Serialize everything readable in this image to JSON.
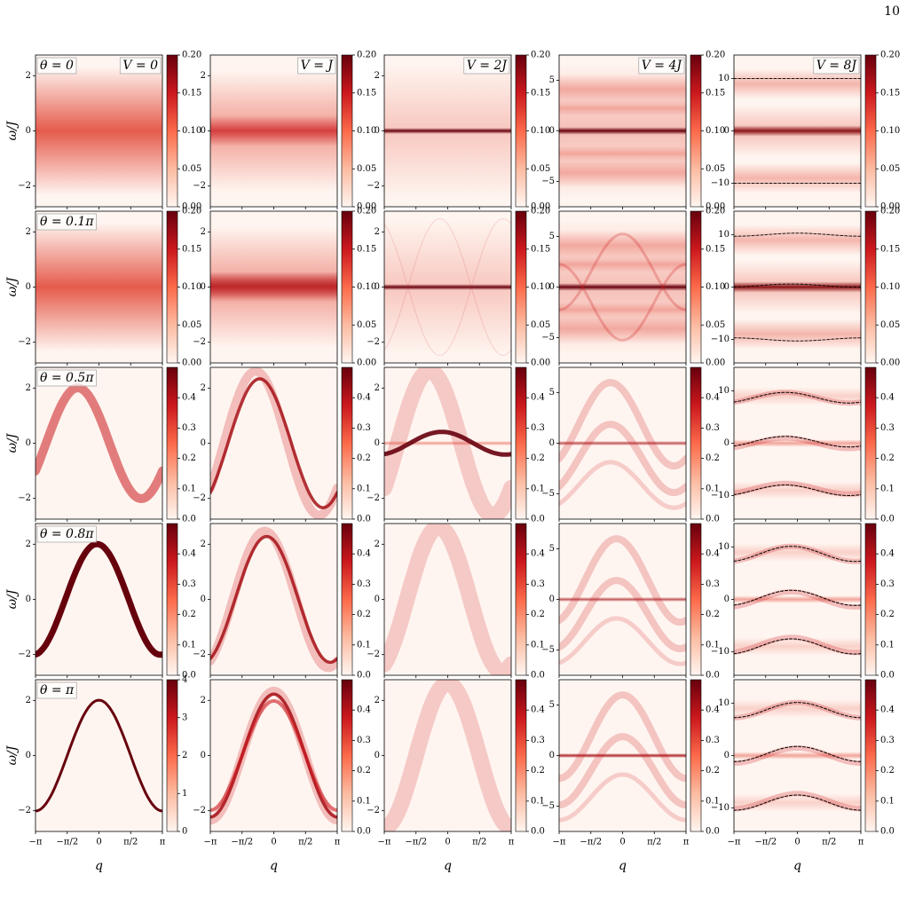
{
  "page_number": "10",
  "y_axis_label": "ω/J",
  "x_axis_label": "q",
  "xlim": [
    -3.1416,
    3.1416
  ],
  "xticks": [
    {
      "value": -3.1416,
      "label": "−π"
    },
    {
      "value": -1.5708,
      "label": "−π/2"
    },
    0,
    {
      "value": 1.5708,
      "label": "π/2"
    },
    {
      "value": 3.1416,
      "label": "π"
    }
  ],
  "columns": [
    {
      "label": "V = 0",
      "ylim": [
        -2.75,
        2.75
      ],
      "yticks": [
        {
          "value": -2,
          "label": "−2"
        },
        0,
        2
      ]
    },
    {
      "label": "V = J",
      "ylim": [
        -2.75,
        2.75
      ],
      "yticks": [
        {
          "value": -2,
          "label": "−2"
        },
        0,
        2
      ]
    },
    {
      "label": "V = 2J",
      "ylim": [
        -2.75,
        2.75
      ],
      "yticks": [
        {
          "value": -2,
          "label": "−2"
        },
        0,
        2
      ]
    },
    {
      "label": "V = 4J",
      "ylim": [
        -7.5,
        7.5
      ],
      "yticks": [
        {
          "value": -5,
          "label": "−5"
        },
        0,
        5
      ]
    },
    {
      "label": "V = 8J",
      "ylim": [
        -14.5,
        14.5
      ],
      "yticks": [
        {
          "value": -10,
          "label": "−10"
        },
        0,
        10
      ]
    }
  ],
  "rows": [
    {
      "label": "θ = 0",
      "colorbar": {
        "clim": [
          0,
          0.2
        ],
        "ticks": [
          {
            "value": 0,
            "label": "0.00"
          },
          0.05,
          {
            "value": 0.1,
            "label": "0.10"
          },
          0.15,
          {
            "value": 0.2,
            "label": "0.20"
          }
        ]
      }
    },
    {
      "label": "θ = 0.1π",
      "colorbar": {
        "clim": [
          0,
          0.2
        ],
        "ticks": [
          {
            "value": 0,
            "label": "0.00"
          },
          0.05,
          {
            "value": 0.1,
            "label": "0.10"
          },
          0.15,
          {
            "value": 0.2,
            "label": "0.20"
          }
        ]
      }
    },
    {
      "label": "θ = 0.5π",
      "colorbar": {
        "clim": [
          0,
          0.5
        ],
        "ticks": [
          {
            "value": 0,
            "label": "0.0"
          },
          0.1,
          0.2,
          0.3,
          0.4
        ]
      }
    },
    {
      "label": "θ = 0.8π",
      "colorbar": {
        "clim": [
          0,
          0.5
        ],
        "ticks": [
          {
            "value": 0,
            "label": "0.0"
          },
          0.1,
          0.2,
          0.3,
          0.4
        ]
      }
    },
    {
      "label": "θ = π",
      "colorbar": {
        "clim": [
          0,
          0.5
        ],
        "ticks": [
          {
            "value": 0,
            "label": "0.0"
          },
          0.1,
          0.2,
          0.3,
          0.4
        ]
      },
      "colorbar_first_panel": {
        "clim": [
          0,
          4
        ],
        "ticks": [
          0,
          1,
          2,
          3,
          4
        ]
      }
    }
  ]
}
